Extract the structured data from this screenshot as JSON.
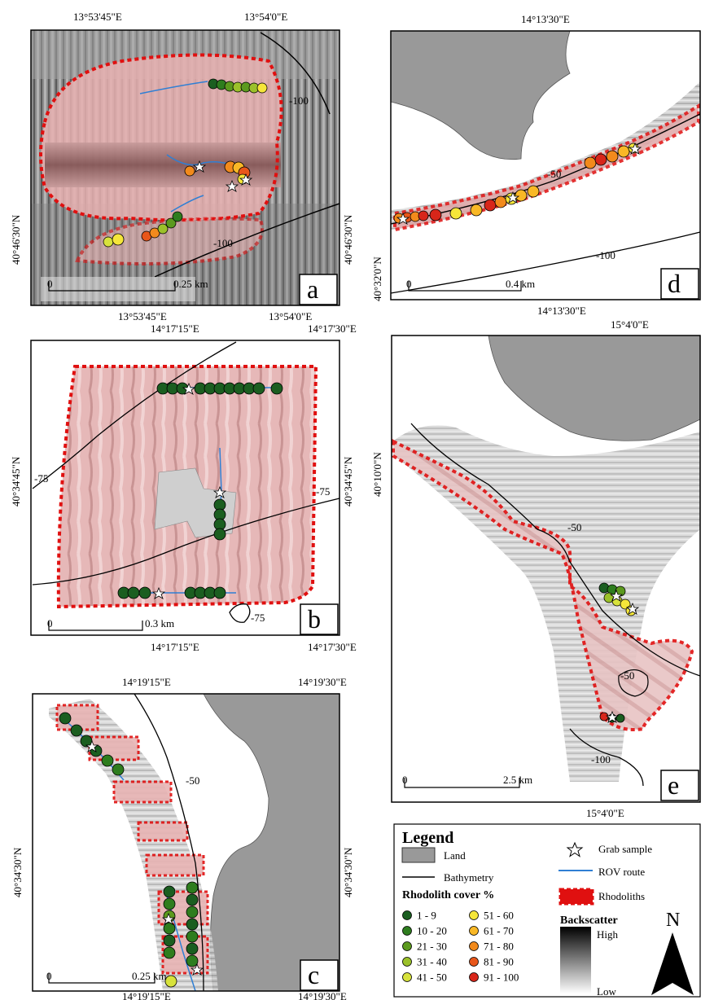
{
  "panels": {
    "a": {
      "letter": "a",
      "top_left": "13°53'45\"E",
      "top_right": "13°54'0\"E",
      "bottom_left": "13°53'45\"E",
      "bottom_right": "13°54'0\"E",
      "left_lat": "40°46'30\"N",
      "right_lat": "40°46'30\"N",
      "scale_zero": "0",
      "scale_label": "0.25 km",
      "contour_1": "-100",
      "contour_2": "-100"
    },
    "b": {
      "letter": "b",
      "top_left": "14°17'15\"E",
      "top_right": "14°17'30\"E",
      "bottom_left": "14°17'15\"E",
      "bottom_right": "14°17'30\"E",
      "left_lat": "40°34'45\"N",
      "right_lat": "40°34'45\"N",
      "scale_zero": "0",
      "scale_label": "0.3 km",
      "contour_1": "-75",
      "contour_2": "-75",
      "contour_3": "-75"
    },
    "c": {
      "letter": "c",
      "top_left": "14°19'15\"E",
      "top_right": "14°19'30\"E",
      "bottom_left": "14°19'15\"E",
      "bottom_right": "14°19'30\"E",
      "left_lat": "40°34'30\"N",
      "right_lat": "40°34'30\"N",
      "scale_zero": "0",
      "scale_label": "0.25 km",
      "contour_1": "-50"
    },
    "d": {
      "letter": "d",
      "top": "14°13'30\"E",
      "bottom": "14°13'30\"E",
      "left_lat": "40°32'0\"N",
      "scale_zero": "0",
      "scale_label": "0.4 km",
      "contour_1": "-50",
      "contour_2": "-100"
    },
    "e": {
      "letter": "e",
      "top": "15°4'0\"E",
      "bottom": "15°4'0\"E",
      "left_lat": "40°10'0\"N",
      "scale_zero": "0",
      "scale_label": "2.5 km",
      "contour_1": "-50",
      "contour_2": "-50",
      "contour_3": "-100"
    }
  },
  "legend": {
    "title": "Legend",
    "land": "Land",
    "bathymetry": "Bathymetry",
    "grab": "Grab sample",
    "rov": "ROV route",
    "rhodoliths": "Rhodoliths",
    "cover_title": "Rhodolith cover %",
    "classes": [
      {
        "label": "1 - 9",
        "color": "#1b5e20"
      },
      {
        "label": "10 - 20",
        "color": "#2e7d1e"
      },
      {
        "label": "21 - 30",
        "color": "#5c9a1e"
      },
      {
        "label": "31 - 40",
        "color": "#9bc12a"
      },
      {
        "label": "41 - 50",
        "color": "#d7e23c"
      },
      {
        "label": "51 - 60",
        "color": "#f5e63a"
      },
      {
        "label": "61 - 70",
        "color": "#f9b826"
      },
      {
        "label": "71 - 80",
        "color": "#f28a1c"
      },
      {
        "label": "81 - 90",
        "color": "#e8561a"
      },
      {
        "label": "91 - 100",
        "color": "#d8261a"
      }
    ],
    "backscatter_title": "Backscatter",
    "high": "High",
    "low": "Low",
    "north": "N"
  }
}
